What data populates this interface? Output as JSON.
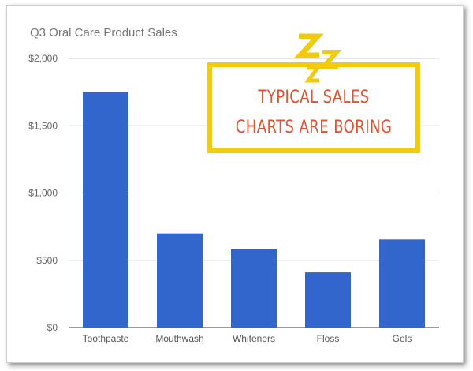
{
  "chart_data": {
    "type": "bar",
    "title": "Q3 Oral Care Product Sales",
    "categories": [
      "Toothpaste",
      "Mouthwash",
      "Whiteners",
      "Floss",
      "Gels"
    ],
    "values": [
      1750,
      700,
      585,
      410,
      655
    ],
    "ylim": [
      0,
      2000
    ],
    "yticks": [
      0,
      500,
      1000,
      1500,
      2000
    ],
    "ytick_labels": [
      "$0",
      "$500",
      "$1,000",
      "$1,500",
      "$2,000"
    ],
    "xlabel": "",
    "ylabel": "",
    "grid": true,
    "bar_color": "#3366cc"
  },
  "callout": {
    "line1": "TYPICAL SALES",
    "line2": "CHARTS ARE BORING",
    "icon": "sleeping-zzz-icon",
    "border_color": "#f2cc0c",
    "text_color": "#e5502e"
  }
}
